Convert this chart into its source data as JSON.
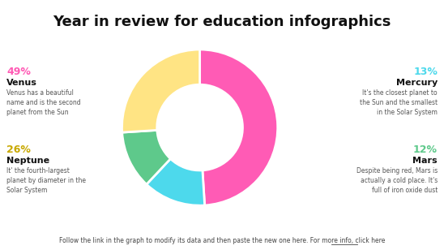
{
  "title": "Year in review for education infographics",
  "title_fontsize": 13,
  "title_fontweight": "bold",
  "footer": "Follow the link in the graph to modify its data and then paste the new one here. For more info, ",
  "footer_link": "click here",
  "slices": [
    {
      "label": "Venus",
      "pct": 49,
      "color": "#FF5BB5",
      "pct_color": "#FF5BB5",
      "name_color": "#111111",
      "desc": "Venus has a beautiful\nname and is the second\nplanet from the Sun",
      "position": "left-top"
    },
    {
      "label": "Mercury",
      "pct": 13,
      "color": "#4DD9EC",
      "pct_color": "#4DD9EC",
      "name_color": "#111111",
      "desc": "It's the closest planet to\nthe Sun and the smallest\nin the Solar System",
      "position": "right-top"
    },
    {
      "label": "Mars",
      "pct": 12,
      "color": "#5EC98B",
      "pct_color": "#5EC98B",
      "name_color": "#111111",
      "desc": "Despite being red, Mars is\nactually a cold place. It's\nfull of iron oxide dust",
      "position": "right-bottom"
    },
    {
      "label": "Neptune",
      "pct": 26,
      "color": "#FFE484",
      "pct_color": "#C8A800",
      "name_color": "#111111",
      "desc": "It' the fourth-largest\nplanet by diameter in the\nSolar System",
      "position": "left-bottom"
    }
  ],
  "background_color": "#FFFFFF"
}
